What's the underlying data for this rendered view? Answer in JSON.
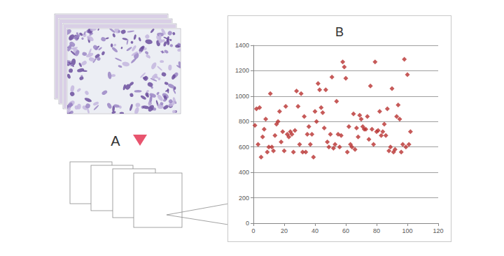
{
  "diagram": {
    "step_label": "A"
  },
  "chart_data": {
    "type": "scatter",
    "title": "B",
    "x": [
      1,
      2,
      3,
      4,
      5,
      6,
      7,
      8,
      9,
      10,
      11,
      12,
      13,
      14,
      15,
      16,
      17,
      18,
      19,
      20,
      21,
      22,
      23,
      24,
      25,
      26,
      27,
      28,
      29,
      30,
      31,
      32,
      33,
      34,
      35,
      36,
      37,
      38,
      39,
      40,
      41,
      42,
      43,
      44,
      45,
      46,
      47,
      48,
      49,
      50,
      51,
      52,
      53,
      54,
      55,
      56,
      57,
      58,
      59,
      60,
      61,
      62,
      63,
      64,
      65,
      66,
      67,
      68,
      69,
      70,
      71,
      72,
      73,
      74,
      75,
      76,
      77,
      78,
      79,
      80,
      81,
      82,
      83,
      84,
      85,
      86,
      87,
      88,
      89,
      90,
      91,
      92,
      93,
      94,
      95,
      96,
      97,
      98,
      99,
      100,
      101,
      102
    ],
    "values": [
      770,
      900,
      620,
      910,
      520,
      680,
      740,
      820,
      560,
      600,
      1020,
      600,
      570,
      690,
      780,
      800,
      880,
      640,
      720,
      570,
      920,
      700,
      680,
      720,
      700,
      560,
      730,
      1040,
      920,
      620,
      1020,
      560,
      840,
      560,
      700,
      760,
      620,
      700,
      520,
      880,
      800,
      1100,
      1050,
      910,
      870,
      750,
      1050,
      640,
      600,
      700,
      1150,
      590,
      620,
      960,
      700,
      600,
      690,
      1270,
      1230,
      1140,
      560,
      760,
      620,
      600,
      860,
      580,
      750,
      680,
      850,
      820,
      760,
      740,
      740,
      840,
      660,
      1080,
      740,
      620,
      1270,
      720,
      730,
      880,
      690,
      720,
      780,
      690,
      900,
      570,
      600,
      1060,
      560,
      580,
      840,
      930,
      820,
      560,
      620,
      1290,
      600,
      1170,
      620,
      720
    ],
    "color": "#b8312f",
    "marker": "diamond",
    "xlim": [
      0,
      120
    ],
    "xticks": [
      0,
      20,
      40,
      60,
      80,
      100,
      120
    ],
    "ylim": [
      0,
      1400
    ],
    "yticks": [
      0,
      200,
      400,
      600,
      800,
      1000,
      1200,
      1400
    ],
    "grid": true
  }
}
